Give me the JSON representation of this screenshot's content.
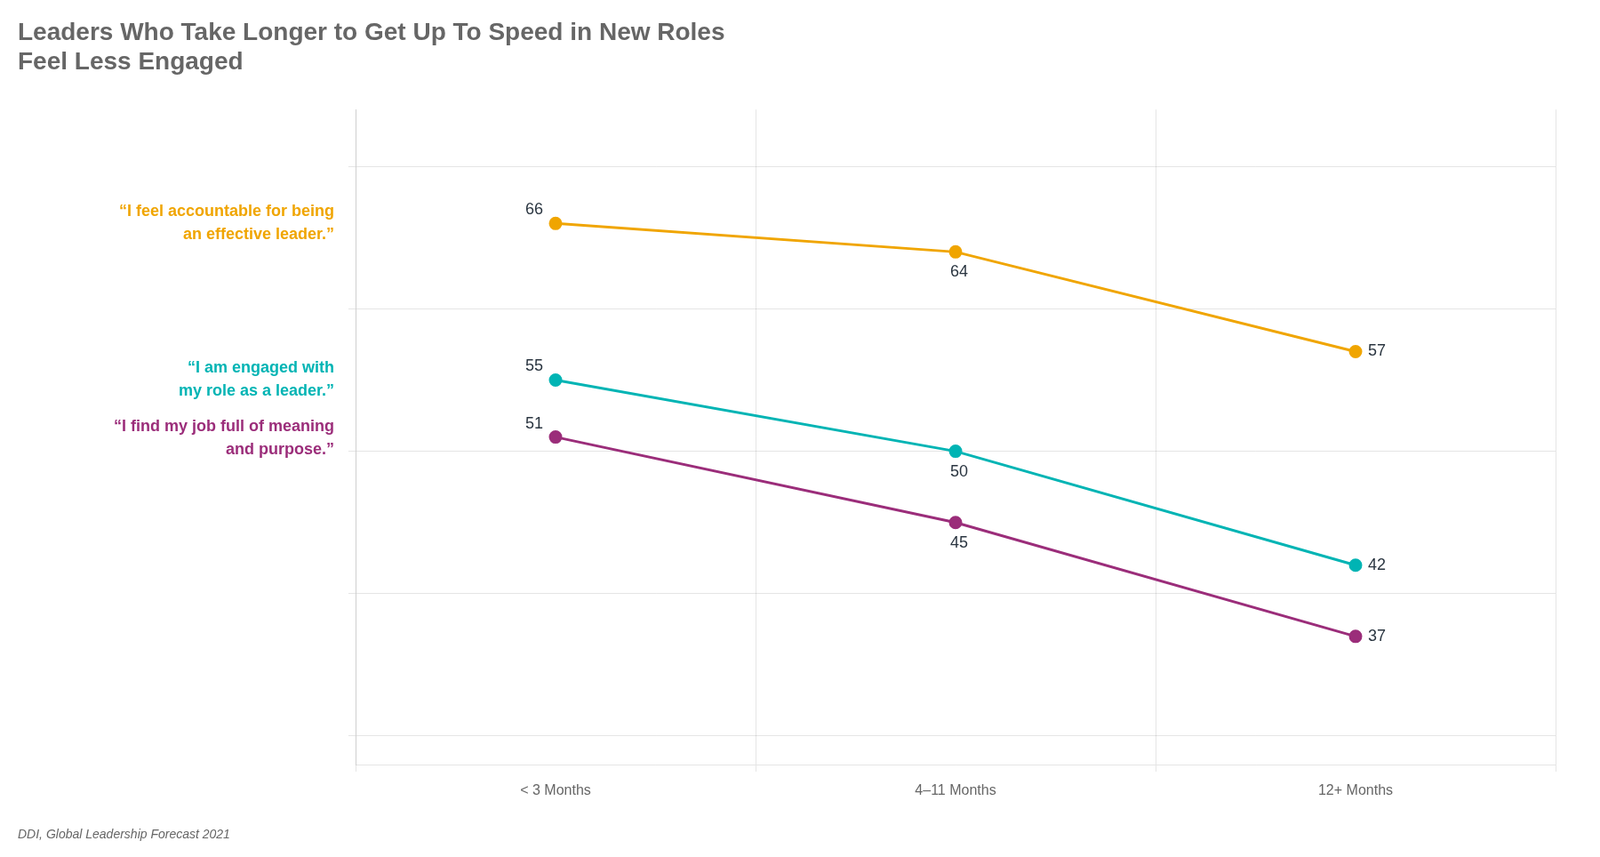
{
  "chart_data": {
    "type": "line",
    "title": "Leaders Who Take Longer to Get Up To Speed in New Roles\nFeel Less Engaged",
    "annotations": [
      "DDI, Global Leadership Forecast 2021"
    ],
    "categories": [
      "< 3 Months",
      "4–11 Months",
      "12+ Months"
    ],
    "series": [
      {
        "name": "“I feel accountable for being\nan effective leader.”",
        "color": "#f0a500",
        "values": [
          66,
          64,
          57
        ]
      },
      {
        "name": "“I am engaged with\nmy role as a leader.”",
        "color": "#00b4b4",
        "values": [
          55,
          50,
          42
        ]
      },
      {
        "name": "“I find my job full of meaning\nand purpose.”",
        "color": "#9b2d7a",
        "values": [
          51,
          45,
          37
        ]
      }
    ],
    "ylim": [
      28,
      74
    ],
    "yticks": [
      30,
      40,
      50,
      60,
      70
    ],
    "grid": true,
    "tick_labels": "x",
    "data_labels": true,
    "legend": "left"
  }
}
